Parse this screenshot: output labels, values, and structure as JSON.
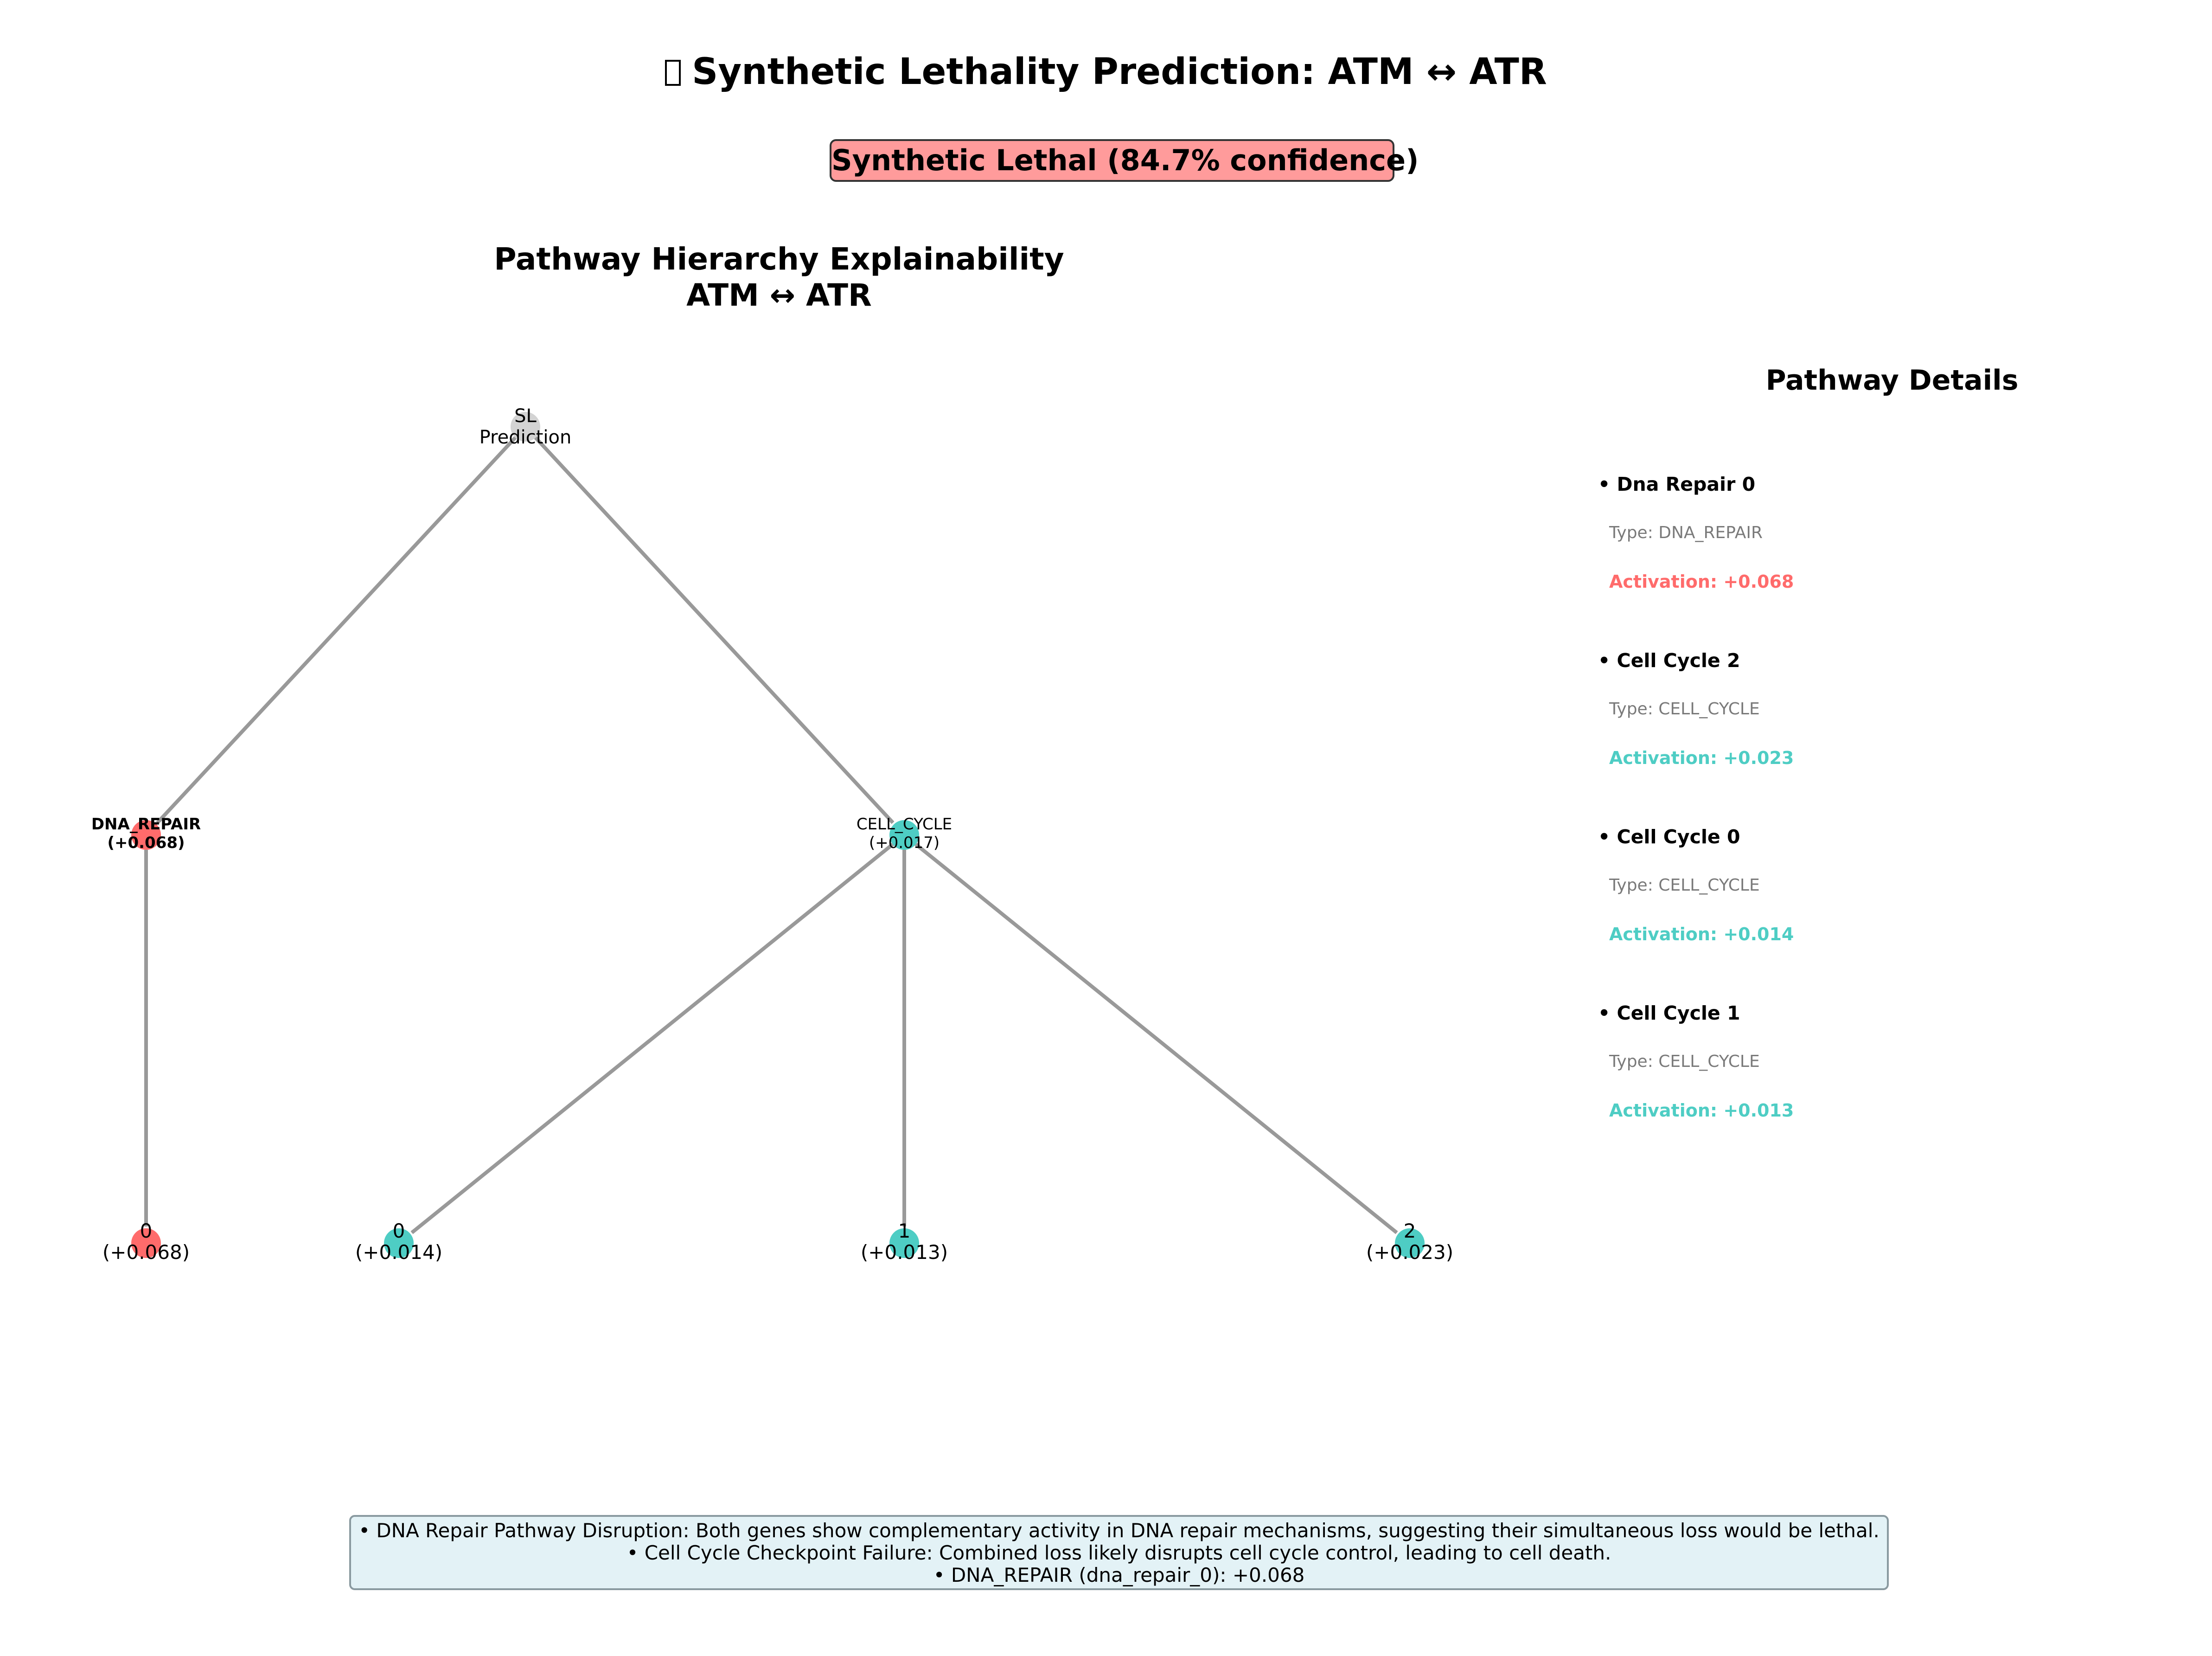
{
  "title": {
    "icon": "dna-icon",
    "text": "Synthetic Lethality Prediction: ATM ↔ ATR"
  },
  "verdict": {
    "text": "Synthetic Lethal (84.7% confidence)",
    "color": "#ff9b9b"
  },
  "panel_title": {
    "line1": "Pathway Hierarchy Explainability",
    "line2": "ATM ↔ ATR"
  },
  "colors": {
    "root": "#d3d3d3",
    "dna_repair": "#ff6b6b",
    "cell_cycle": "#4ecdc4",
    "edge": "#999999"
  },
  "tree": {
    "root": {
      "line1": "SL",
      "line2": "Prediction"
    },
    "groups": [
      {
        "line1": "DNA_REPAIR",
        "line2": "(+0.068)",
        "color": "dna_repair",
        "bold": true
      },
      {
        "line1": "CELL_CYCLE",
        "line2": "(+0.017)",
        "color": "cell_cycle",
        "bold": false
      }
    ],
    "leaves": [
      {
        "line1": "0",
        "line2": "(+0.068)",
        "color": "dna_repair"
      },
      {
        "line1": "0",
        "line2": "(+0.014)",
        "color": "cell_cycle"
      },
      {
        "line1": "1",
        "line2": "(+0.013)",
        "color": "cell_cycle"
      },
      {
        "line1": "2",
        "line2": "(+0.023)",
        "color": "cell_cycle"
      }
    ]
  },
  "details": {
    "title": "Pathway Details",
    "items": [
      {
        "name": "• Dna Repair 0",
        "type": "Type: DNA_REPAIR",
        "activation": "Activation: +0.068",
        "color": "#ff6b6b"
      },
      {
        "name": "• Cell Cycle 2",
        "type": "Type: CELL_CYCLE",
        "activation": "Activation: +0.023",
        "color": "#4ecdc4"
      },
      {
        "name": "• Cell Cycle 0",
        "type": "Type: CELL_CYCLE",
        "activation": "Activation: +0.014",
        "color": "#4ecdc4"
      },
      {
        "name": "• Cell Cycle 1",
        "type": "Type: CELL_CYCLE",
        "activation": "Activation: +0.013",
        "color": "#4ecdc4"
      }
    ]
  },
  "notes": [
    "• DNA Repair Pathway Disruption: Both genes show complementary activity in DNA repair mechanisms, suggesting their simultaneous loss would be lethal.",
    "• Cell Cycle Checkpoint Failure: Combined loss likely disrupts cell cycle control, leading to cell death.",
    "• DNA_REPAIR (dna_repair_0): +0.068"
  ]
}
